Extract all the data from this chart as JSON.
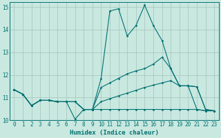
{
  "xlabel": "Humidex (Indice chaleur)",
  "xlim": [
    -0.5,
    23.5
  ],
  "ylim": [
    10,
    15.2
  ],
  "yticks": [
    10,
    11,
    12,
    13,
    14,
    15
  ],
  "xticks": [
    0,
    1,
    2,
    3,
    4,
    5,
    6,
    7,
    8,
    9,
    10,
    11,
    12,
    13,
    14,
    15,
    16,
    17,
    18,
    19,
    20,
    21,
    22,
    23
  ],
  "bg_color": "#c8e8e0",
  "grid_color": "#a8c8c0",
  "line_color": "#007070",
  "lines": [
    {
      "x": [
        0,
        1,
        2,
        3,
        4,
        5,
        6,
        7,
        8,
        9,
        10,
        11,
        12,
        13,
        14,
        15,
        16,
        17,
        18,
        19,
        20,
        21,
        22,
        23
      ],
      "y": [
        11.35,
        11.15,
        10.65,
        10.88,
        10.88,
        10.82,
        10.82,
        10.05,
        10.48,
        10.48,
        11.85,
        14.82,
        14.92,
        13.72,
        14.18,
        15.08,
        14.18,
        13.52,
        12.28,
        11.52,
        11.52,
        10.48,
        10.42,
        10.42
      ]
    },
    {
      "x": [
        0,
        1,
        2,
        3,
        4,
        5,
        6,
        7,
        8,
        9,
        10,
        11,
        12,
        13,
        14,
        15,
        16,
        17,
        18,
        19,
        20,
        21,
        22,
        23
      ],
      "y": [
        11.35,
        11.15,
        10.65,
        10.88,
        10.88,
        10.82,
        10.82,
        10.82,
        10.48,
        10.48,
        11.45,
        11.65,
        11.85,
        12.05,
        12.18,
        12.28,
        12.48,
        12.78,
        12.28,
        11.52,
        11.52,
        11.48,
        10.48,
        10.42
      ]
    },
    {
      "x": [
        0,
        1,
        2,
        3,
        4,
        5,
        6,
        7,
        8,
        9,
        10,
        11,
        12,
        13,
        14,
        15,
        16,
        17,
        18,
        19,
        20,
        21,
        22,
        23
      ],
      "y": [
        11.35,
        11.15,
        10.65,
        10.88,
        10.88,
        10.82,
        10.82,
        10.82,
        10.48,
        10.48,
        10.82,
        10.95,
        11.08,
        11.2,
        11.32,
        11.45,
        11.55,
        11.65,
        11.75,
        11.52,
        11.52,
        11.48,
        10.48,
        10.42
      ]
    },
    {
      "x": [
        0,
        1,
        2,
        3,
        4,
        5,
        6,
        7,
        8,
        9,
        10,
        11,
        12,
        13,
        14,
        15,
        16,
        17,
        18,
        19,
        20,
        21,
        22,
        23
      ],
      "y": [
        11.35,
        11.15,
        10.65,
        10.88,
        10.88,
        10.82,
        10.82,
        10.82,
        10.48,
        10.48,
        10.48,
        10.48,
        10.48,
        10.48,
        10.48,
        10.48,
        10.48,
        10.48,
        10.48,
        10.48,
        10.48,
        10.48,
        10.42,
        10.42
      ]
    }
  ]
}
